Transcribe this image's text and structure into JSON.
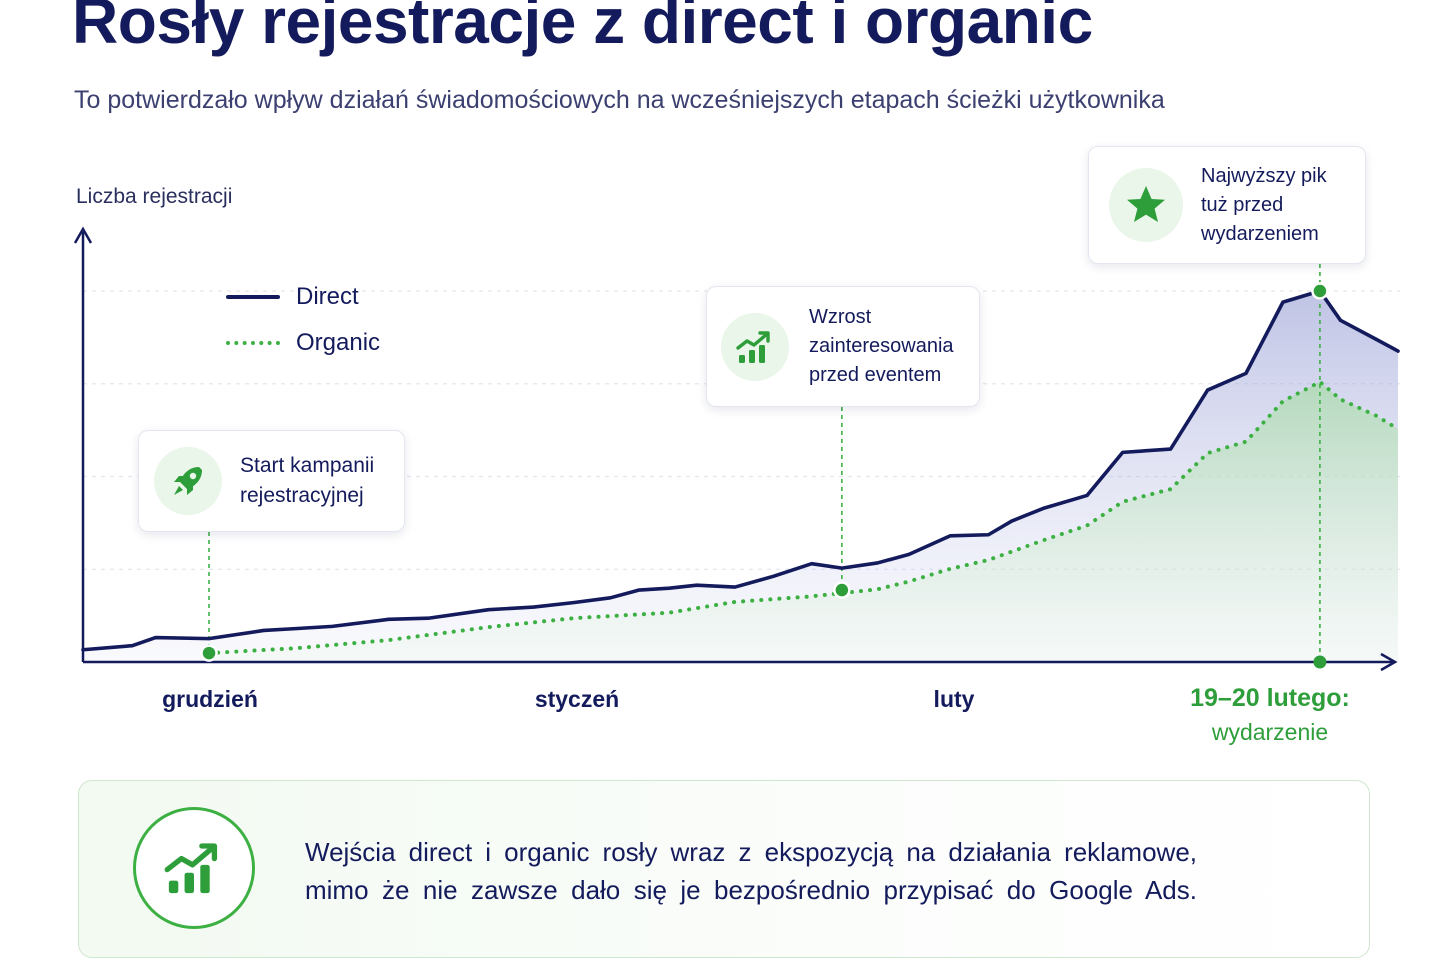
{
  "header": {
    "title": "Rosły rejestracje z direct i organic",
    "subtitle": "To potwierdzało wpływ działań świadomościowych na wcześniejszych etapach ścieżki użytkownika"
  },
  "chart_data": {
    "type": "line",
    "title": "Rosły rejestracje z direct i organic",
    "ylabel": "Liczba rejestracji",
    "xlabel": "",
    "x_ticks": [
      "grudzień",
      "styczeń",
      "luty"
    ],
    "event_tick": {
      "date": "19–20 lutego:",
      "label": "wydarzenie"
    },
    "y_axis_values_shown": false,
    "grid": "horizontal-dashed",
    "legend_position": "top-left",
    "x_domain": [
      0,
      96
    ],
    "ylim": [
      0,
      100
    ],
    "series": [
      {
        "name": "Direct",
        "color": "#141b5c",
        "style": "solid",
        "x": [
          0,
          3.6,
          5.3,
          9.2,
          13.2,
          15.5,
          18.2,
          22.3,
          25.2,
          29.6,
          32.9,
          35.8,
          38.5,
          40.6,
          42.8,
          44.8,
          47.6,
          50.4,
          53.2,
          55.4,
          58.0,
          60.3,
          63.3,
          66.1,
          67.8,
          70.1,
          73.3,
          75.9,
          79.4,
          82.1,
          84.9,
          87.6,
          90.3,
          91.8,
          94.4,
          96.0
        ],
        "values": [
          3.3,
          4.4,
          6.6,
          6.3,
          8.5,
          9.0,
          9.6,
          11.5,
          11.8,
          14.1,
          14.8,
          16.0,
          17.3,
          19.4,
          19.9,
          20.7,
          20.2,
          23.1,
          26.5,
          25.3,
          26.7,
          29.0,
          34.0,
          34.3,
          38.0,
          41.4,
          44.9,
          56.5,
          57.4,
          73.3,
          77.8,
          97.0,
          100.0,
          92.1,
          87.0,
          83.8
        ]
      },
      {
        "name": "Organic",
        "color": "#3cb043",
        "style": "dotted",
        "x": [
          9.2,
          15.5,
          22.3,
          29.6,
          35.8,
          42.8,
          47.6,
          53.2,
          58.0,
          60.3,
          63.3,
          66.1,
          70.1,
          73.3,
          75.9,
          79.4,
          82.1,
          84.9,
          87.6,
          90.3,
          91.8,
          94.4,
          96.0
        ],
        "values": [
          2.4,
          3.7,
          5.9,
          9.4,
          11.8,
          13.3,
          16.2,
          17.7,
          19.6,
          21.7,
          25.1,
          27.5,
          32.8,
          36.8,
          43.2,
          46.6,
          56.3,
          59.4,
          70.3,
          75.5,
          70.8,
          66.4,
          62.8
        ]
      }
    ],
    "annotations": [
      {
        "id": "start",
        "x": 9.2,
        "series": "Organic",
        "icon": "rocket-icon",
        "text": "Start kampanii\nrejestracyjnej"
      },
      {
        "id": "growth",
        "x": 55.4,
        "series": "Organic",
        "y": 19.4,
        "icon": "growth-chart-icon",
        "text": "Wzrost\nzainteresowania\nprzed eventem"
      },
      {
        "id": "peak",
        "x": 90.3,
        "series": "Direct",
        "icon": "star-icon",
        "text": "Najwyższy pik\ntuż przed\nwydarzeniem"
      }
    ]
  },
  "legend": {
    "direct_label": "Direct",
    "organic_label": "Organic"
  },
  "insight": {
    "line1": "Wejścia direct i organic rosły wraz z ekspozycją na działania reklamowe,",
    "line2": "mimo że nie zawsze dało się je bezpośrednio przypisać do Google Ads.",
    "icon": "growth-chart-icon",
    "accent_color": "#3cb043"
  },
  "colors": {
    "navy": "#141b5c",
    "green": "#3cb043",
    "green_dark": "#2e9e3a"
  }
}
